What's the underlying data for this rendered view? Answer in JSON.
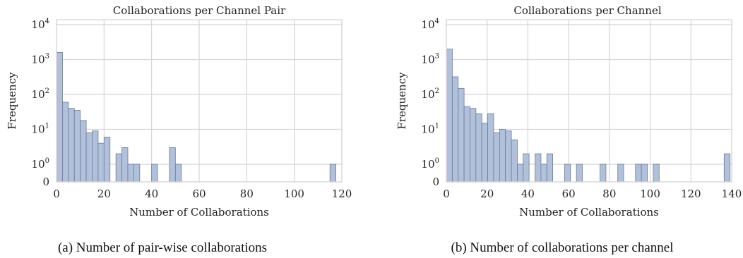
{
  "chart_data": [
    {
      "type": "bar",
      "title": "Collaborations per Channel Pair",
      "xlabel": "Number of Collaborations",
      "ylabel": "Frequency",
      "caption": "(a) Number of pair-wise collaborations",
      "yscale": "symlog",
      "xlim": [
        0,
        120
      ],
      "xticks": [
        0,
        20,
        40,
        60,
        80,
        100,
        120
      ],
      "yticks": [
        "0",
        "10^0",
        "10^1",
        "10^2",
        "10^3",
        "10^4"
      ],
      "grid": true,
      "bin_width": 2.5,
      "bins": [
        {
          "x": 2.5,
          "y": 1600
        },
        {
          "x": 5,
          "y": 60
        },
        {
          "x": 7.5,
          "y": 40
        },
        {
          "x": 10,
          "y": 35
        },
        {
          "x": 12.5,
          "y": 18
        },
        {
          "x": 15,
          "y": 8
        },
        {
          "x": 17.5,
          "y": 9
        },
        {
          "x": 20,
          "y": 4
        },
        {
          "x": 22.5,
          "y": 6
        },
        {
          "x": 27.5,
          "y": 2
        },
        {
          "x": 30,
          "y": 3
        },
        {
          "x": 32.5,
          "y": 1
        },
        {
          "x": 35,
          "y": 1
        },
        {
          "x": 42.5,
          "y": 1
        },
        {
          "x": 50,
          "y": 3
        },
        {
          "x": 52.5,
          "y": 1
        },
        {
          "x": 117.5,
          "y": 1
        }
      ]
    },
    {
      "type": "bar",
      "title": "Collaborations per Channel",
      "xlabel": "Number of Collaborations",
      "ylabel": "Frequency",
      "caption": "(b) Number of collaborations per channel",
      "yscale": "symlog",
      "xlim": [
        0,
        140
      ],
      "xticks": [
        0,
        20,
        40,
        60,
        80,
        100,
        120,
        140
      ],
      "yticks": [
        "0",
        "10^0",
        "10^1",
        "10^2",
        "10^3",
        "10^4"
      ],
      "grid": true,
      "bin_width": 2.9,
      "bins": [
        {
          "x": 2.9,
          "y": 2000
        },
        {
          "x": 5.8,
          "y": 320
        },
        {
          "x": 8.7,
          "y": 150
        },
        {
          "x": 11.6,
          "y": 45
        },
        {
          "x": 14.5,
          "y": 40
        },
        {
          "x": 17.4,
          "y": 28
        },
        {
          "x": 20.3,
          "y": 15
        },
        {
          "x": 23.2,
          "y": 28
        },
        {
          "x": 26.1,
          "y": 8
        },
        {
          "x": 29,
          "y": 10
        },
        {
          "x": 31.9,
          "y": 9
        },
        {
          "x": 34.8,
          "y": 5
        },
        {
          "x": 37.7,
          "y": 1
        },
        {
          "x": 40.6,
          "y": 2
        },
        {
          "x": 46.4,
          "y": 2
        },
        {
          "x": 49.3,
          "y": 1
        },
        {
          "x": 52.2,
          "y": 2
        },
        {
          "x": 60.9,
          "y": 1
        },
        {
          "x": 66.7,
          "y": 1
        },
        {
          "x": 78.3,
          "y": 1
        },
        {
          "x": 87,
          "y": 1
        },
        {
          "x": 95.7,
          "y": 1
        },
        {
          "x": 98.6,
          "y": 1
        },
        {
          "x": 104.4,
          "y": 1
        },
        {
          "x": 139.2,
          "y": 2
        }
      ]
    }
  ]
}
